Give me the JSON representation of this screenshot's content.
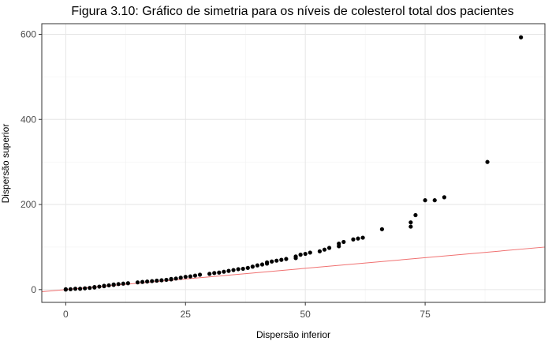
{
  "chart_data": {
    "type": "scatter",
    "title": "Figura 3.10: Gráfico de simetria para os níveis de colesterol total dos pacientes",
    "xlabel": "Dispersão inferior",
    "ylabel": "Dispersão superior",
    "xlim": [
      -5,
      100
    ],
    "ylim": [
      -30,
      625
    ],
    "x_ticks": [
      0,
      25,
      50,
      75
    ],
    "y_ticks": [
      0,
      200,
      400,
      600
    ],
    "x_tick_labels": [
      "0",
      "25",
      "50",
      "75"
    ],
    "y_tick_labels": [
      "0",
      "200",
      "400",
      "600"
    ],
    "grid": true,
    "reference_line": {
      "slope": 1,
      "intercept": 0,
      "color": "#f07070"
    },
    "point_color": "#000000",
    "points": [
      [
        0,
        0
      ],
      [
        0,
        1
      ],
      [
        1,
        1
      ],
      [
        2,
        2
      ],
      [
        3,
        2
      ],
      [
        4,
        3
      ],
      [
        5,
        4
      ],
      [
        6,
        5
      ],
      [
        6,
        6
      ],
      [
        7,
        7
      ],
      [
        8,
        8
      ],
      [
        8,
        9
      ],
      [
        9,
        10
      ],
      [
        10,
        11
      ],
      [
        10,
        12
      ],
      [
        11,
        13
      ],
      [
        12,
        14
      ],
      [
        13,
        15
      ],
      [
        15,
        17
      ],
      [
        16,
        18
      ],
      [
        17,
        19
      ],
      [
        18,
        20
      ],
      [
        19,
        21
      ],
      [
        20,
        22
      ],
      [
        21,
        23
      ],
      [
        22,
        24
      ],
      [
        22,
        25
      ],
      [
        23,
        26
      ],
      [
        24,
        28
      ],
      [
        25,
        30
      ],
      [
        26,
        31
      ],
      [
        27,
        33
      ],
      [
        28,
        35
      ],
      [
        30,
        37
      ],
      [
        31,
        39
      ],
      [
        32,
        40
      ],
      [
        33,
        42
      ],
      [
        34,
        44
      ],
      [
        35,
        46
      ],
      [
        36,
        48
      ],
      [
        37,
        49
      ],
      [
        38,
        51
      ],
      [
        39,
        54
      ],
      [
        40,
        57
      ],
      [
        41,
        59
      ],
      [
        42,
        61
      ],
      [
        42,
        64
      ],
      [
        43,
        66
      ],
      [
        44,
        68
      ],
      [
        45,
        70
      ],
      [
        46,
        72
      ],
      [
        48,
        74
      ],
      [
        48,
        78
      ],
      [
        49,
        82
      ],
      [
        50,
        84
      ],
      [
        51,
        87
      ],
      [
        53,
        90
      ],
      [
        54,
        94
      ],
      [
        55,
        98
      ],
      [
        57,
        102
      ],
      [
        57,
        108
      ],
      [
        58,
        112
      ],
      [
        60,
        118
      ],
      [
        61,
        120
      ],
      [
        62,
        122
      ],
      [
        66,
        142
      ],
      [
        72,
        148
      ],
      [
        72,
        158
      ],
      [
        73,
        175
      ],
      [
        75,
        210
      ],
      [
        77,
        210
      ],
      [
        79,
        217
      ],
      [
        88,
        300
      ],
      [
        95,
        593
      ]
    ]
  }
}
